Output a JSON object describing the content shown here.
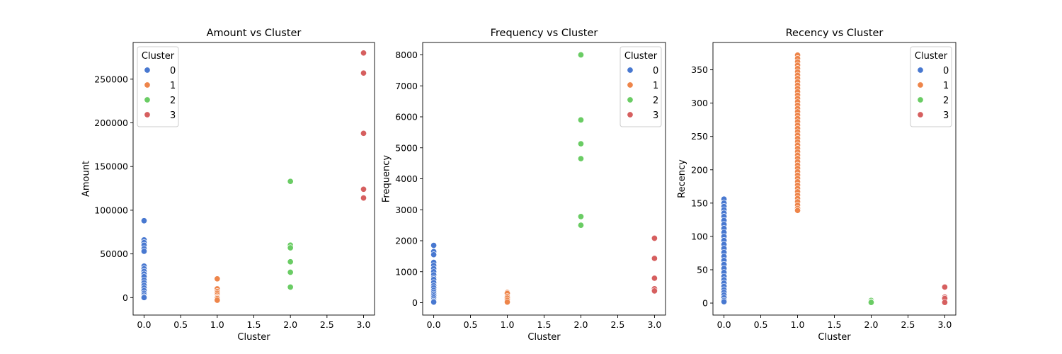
{
  "palette": {
    "0": "#4878d0",
    "1": "#ee854a",
    "2": "#6acc64",
    "3": "#d65f5f"
  },
  "chart_data": [
    {
      "type": "scatter",
      "title": "Amount vs Cluster",
      "xlabel": "Cluster",
      "ylabel": "Amount",
      "xlim": [
        -0.15,
        3.15
      ],
      "ylim": [
        -20000,
        292000
      ],
      "xticks": [
        0.0,
        0.5,
        1.0,
        1.5,
        2.0,
        2.5,
        3.0
      ],
      "xtick_labels": [
        "0.0",
        "0.5",
        "1.0",
        "1.5",
        "2.0",
        "2.5",
        "3.0"
      ],
      "yticks": [
        0,
        50000,
        100000,
        150000,
        200000,
        250000
      ],
      "ytick_labels": [
        "0",
        "50000",
        "100000",
        "150000",
        "200000",
        "250000"
      ],
      "legend": {
        "title": "Cluster",
        "position": "upper left",
        "entries": [
          "0",
          "1",
          "2",
          "3"
        ]
      },
      "series": [
        {
          "cluster": "0",
          "x": 0,
          "y": [
            88000,
            66000,
            63000,
            60000,
            56000,
            53000,
            36000,
            33000,
            30000,
            27000,
            24000,
            20000,
            17000,
            14000,
            11000,
            8000,
            5000,
            3000,
            1000,
            0
          ]
        },
        {
          "cluster": "1",
          "x": 1,
          "y": [
            21500,
            10000,
            7000,
            5000,
            3000,
            1000,
            0,
            -1000,
            -3000
          ]
        },
        {
          "cluster": "2",
          "x": 2,
          "y": [
            133000,
            60000,
            57000,
            41000,
            29000,
            12000
          ]
        },
        {
          "cluster": "3",
          "x": 3,
          "y": [
            280000,
            257000,
            188000,
            124000,
            114000
          ]
        }
      ]
    },
    {
      "type": "scatter",
      "title": "Frequency vs Cluster",
      "xlabel": "Cluster",
      "ylabel": "Frequency",
      "xlim": [
        -0.15,
        3.15
      ],
      "ylim": [
        -400,
        8400
      ],
      "xticks": [
        0.0,
        0.5,
        1.0,
        1.5,
        2.0,
        2.5,
        3.0
      ],
      "xtick_labels": [
        "0.0",
        "0.5",
        "1.0",
        "1.5",
        "2.0",
        "2.5",
        "3.0"
      ],
      "yticks": [
        0,
        1000,
        2000,
        3000,
        4000,
        5000,
        6000,
        7000,
        8000
      ],
      "ytick_labels": [
        "0",
        "1000",
        "2000",
        "3000",
        "4000",
        "5000",
        "6000",
        "7000",
        "8000"
      ],
      "legend": {
        "title": "Cluster",
        "position": "upper right",
        "entries": [
          "0",
          "1",
          "2",
          "3"
        ]
      },
      "series": [
        {
          "cluster": "0",
          "x": 0,
          "y": [
            1850,
            1650,
            1550,
            1300,
            1200,
            1100,
            1000,
            900,
            800,
            750,
            650,
            550,
            480,
            400,
            340,
            280,
            220,
            160,
            100,
            50,
            20
          ]
        },
        {
          "cluster": "1",
          "x": 1,
          "y": [
            330,
            300,
            200,
            150,
            80,
            20
          ]
        },
        {
          "cluster": "2",
          "x": 2,
          "y": [
            8000,
            5900,
            5130,
            4650,
            2780,
            2500
          ]
        },
        {
          "cluster": "3",
          "x": 3,
          "y": [
            2080,
            1430,
            790,
            450,
            380
          ]
        }
      ]
    },
    {
      "type": "scatter",
      "title": "Recency vs Cluster",
      "xlabel": "Cluster",
      "ylabel": "Recency",
      "xlim": [
        -0.15,
        3.15
      ],
      "ylim": [
        -18,
        391
      ],
      "xticks": [
        0.0,
        0.5,
        1.0,
        1.5,
        2.0,
        2.5,
        3.0
      ],
      "xtick_labels": [
        "0.0",
        "0.5",
        "1.0",
        "1.5",
        "2.0",
        "2.5",
        "3.0"
      ],
      "yticks": [
        0,
        50,
        100,
        150,
        200,
        250,
        300,
        350
      ],
      "ytick_labels": [
        "0",
        "50",
        "100",
        "150",
        "200",
        "250",
        "300",
        "350"
      ],
      "legend": {
        "title": "Cluster",
        "position": "upper right",
        "entries": [
          "0",
          "1",
          "2",
          "3"
        ]
      },
      "series": [
        {
          "cluster": "0",
          "x": 0,
          "y": [
            156,
            150,
            145,
            140,
            135,
            130,
            124,
            118,
            112,
            106,
            100,
            94,
            88,
            82,
            76,
            70,
            64,
            58,
            52,
            46,
            40,
            35,
            30,
            25,
            20,
            16,
            12,
            8,
            4,
            2
          ]
        },
        {
          "cluster": "1",
          "x": 1,
          "y": [
            372,
            367,
            362,
            357,
            352,
            347,
            342,
            337,
            332,
            327,
            322,
            317,
            312,
            307,
            302,
            297,
            292,
            287,
            282,
            277,
            272,
            267,
            262,
            257,
            252,
            247,
            242,
            237,
            232,
            227,
            222,
            217,
            212,
            207,
            202,
            197,
            192,
            187,
            182,
            177,
            172,
            167,
            162,
            157,
            152,
            147,
            142,
            139
          ]
        },
        {
          "cluster": "2",
          "x": 2,
          "y": [
            4,
            2,
            1
          ]
        },
        {
          "cluster": "3",
          "x": 3,
          "y": [
            24,
            9,
            7,
            1
          ]
        }
      ]
    }
  ]
}
